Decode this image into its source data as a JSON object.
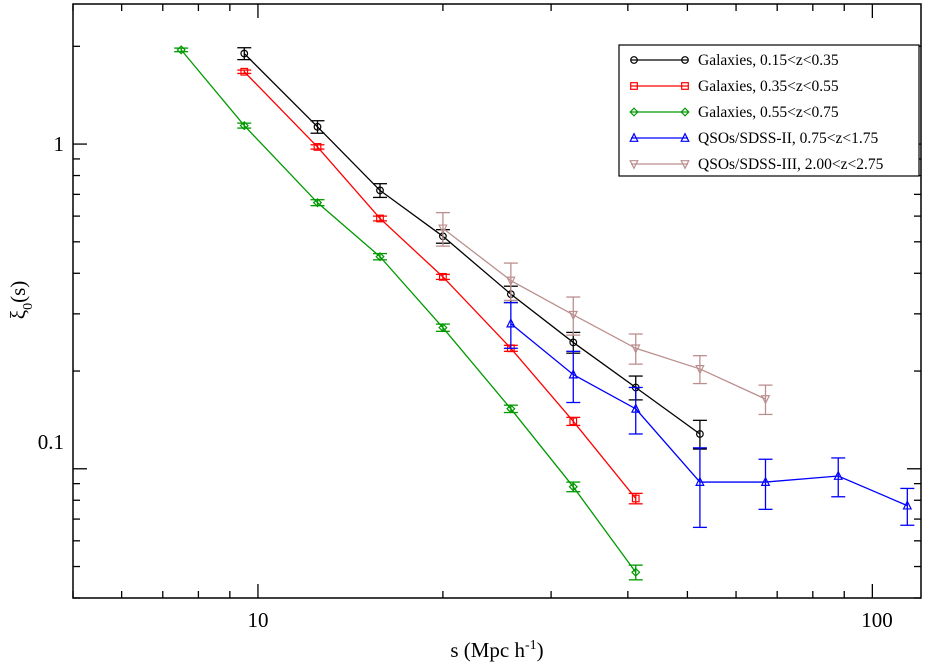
{
  "chart_data": {
    "type": "line",
    "xscale": "log",
    "yscale": "log",
    "xlim": [
      5,
      120
    ],
    "ylim": [
      0.04,
      2.7
    ],
    "xlabel": "s (Mpc h",
    "xlabel_sup": "-1",
    "xlabel_end": ")",
    "ylabel": "ξ",
    "ylabel_sub": "0",
    "ylabel_end": "(s)",
    "x_tick_labels": [
      "10",
      "100"
    ],
    "y_tick_labels": [
      "0.1",
      "1"
    ],
    "legend_position": "top-right",
    "series": [
      {
        "name": "Galaxies, 0.15<z<0.35",
        "color": "#000000",
        "marker": "circle",
        "x": [
          9.5,
          12.5,
          15.8,
          20.0,
          25.8,
          32.6,
          41.2,
          52.4
        ],
        "y": [
          1.9,
          1.13,
          0.72,
          0.52,
          0.345,
          0.245,
          0.178,
          0.128
        ],
        "err": [
          0.08,
          0.05,
          0.035,
          0.025,
          0.02,
          0.018,
          0.015,
          0.013
        ]
      },
      {
        "name": "Galaxies, 0.35<z<0.55",
        "color": "#ff0000",
        "marker": "square",
        "x": [
          9.5,
          12.5,
          15.8,
          20.0,
          25.8,
          32.6,
          41.2
        ],
        "y": [
          1.67,
          0.98,
          0.59,
          0.39,
          0.235,
          0.14,
          0.081
        ],
        "err": [
          0.02,
          0.015,
          0.01,
          0.007,
          0.005,
          0.004,
          0.003
        ]
      },
      {
        "name": "Galaxies, 0.55<z<0.75",
        "color": "#009900",
        "marker": "diamond",
        "x": [
          7.5,
          9.5,
          12.5,
          15.8,
          20.0,
          25.8,
          32.6,
          41.2
        ],
        "y": [
          1.95,
          1.14,
          0.66,
          0.45,
          0.272,
          0.153,
          0.088,
          0.048
        ],
        "err": [
          0.025,
          0.02,
          0.014,
          0.01,
          0.007,
          0.004,
          0.003,
          0.0025
        ]
      },
      {
        "name": "QSOs/SDSS-II, 0.75<z<1.75",
        "color": "#0000ff",
        "marker": "triangle-up",
        "x": [
          25.8,
          32.6,
          41.2,
          52.4,
          67.0,
          88.0,
          114.0
        ],
        "y": [
          0.28,
          0.195,
          0.153,
          0.091,
          0.091,
          0.095,
          0.077
        ],
        "err": [
          0.045,
          0.035,
          0.025,
          0.025,
          0.016,
          0.013,
          0.01
        ]
      },
      {
        "name": "QSOs/SDSS-III, 2.00<z<2.75",
        "color": "#bc8f8f",
        "marker": "triangle-down",
        "x": [
          20.0,
          25.8,
          32.6,
          41.2,
          52.4,
          67.0
        ],
        "y": [
          0.55,
          0.38,
          0.298,
          0.235,
          0.203,
          0.164
        ],
        "err": [
          0.065,
          0.05,
          0.04,
          0.025,
          0.02,
          0.017
        ]
      }
    ]
  }
}
